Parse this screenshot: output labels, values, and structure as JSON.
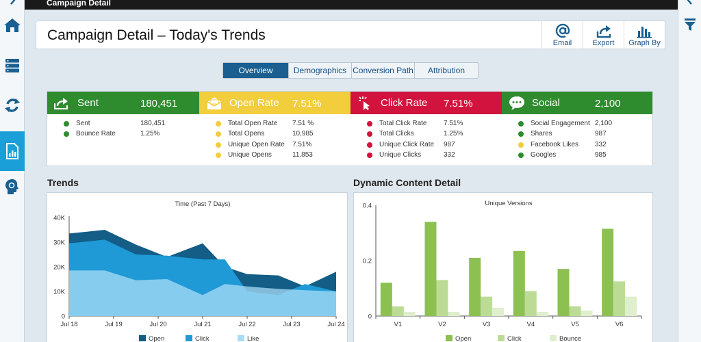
{
  "window": {
    "title": "Campaign Detail"
  },
  "header": {
    "title": "Campaign Detail – Today's Trends",
    "actions": [
      {
        "label": "Email",
        "icon": "at-icon"
      },
      {
        "label": "Export",
        "icon": "export-icon"
      },
      {
        "label": "Graph By",
        "icon": "bar-chart-icon"
      }
    ]
  },
  "tabs": [
    {
      "label": "Overview",
      "active": true
    },
    {
      "label": "Demographics"
    },
    {
      "label": "Conversion Path"
    },
    {
      "label": "Attribution"
    }
  ],
  "sidebar": {
    "items": [
      {
        "icon": "home-icon"
      },
      {
        "icon": "server-icon"
      },
      {
        "icon": "refresh-icon"
      },
      {
        "icon": "report-icon",
        "active": true
      },
      {
        "icon": "head-idea-icon"
      }
    ]
  },
  "right_rail": {
    "icons": [
      "chevron-left-icon",
      "filter-icon"
    ]
  },
  "kpis": [
    {
      "title": "Sent",
      "value": "180,451",
      "color": "#2e8b2e",
      "icon": "send-icon",
      "rows": [
        {
          "label": "Sent",
          "value": "180,451",
          "dot": "#2e8b2e"
        },
        {
          "label": "Bounce Rate",
          "value": "1.25%",
          "dot": "#2e8b2e"
        }
      ]
    },
    {
      "title": "Open Rate",
      "value": "7.51%",
      "color": "#f2cd3c",
      "icon": "envelope-open-icon",
      "rows": [
        {
          "label": "Total Open Rate",
          "value": "7.51 %",
          "dot": "#f2cd3c"
        },
        {
          "label": "Total Opens",
          "value": "10,985",
          "dot": "#f2cd3c"
        },
        {
          "label": "Unique Open Rate",
          "value": "7.51%",
          "dot": "#f2cd3c"
        },
        {
          "label": "Unique Opens",
          "value": "11,853",
          "dot": "#f2cd3c"
        }
      ]
    },
    {
      "title": "Click Rate",
      "value": "7.51%",
      "color": "#d1133d",
      "icon": "cursor-click-icon",
      "rows": [
        {
          "label": "Total Click Rate",
          "value": "7.51%",
          "dot": "#d1133d"
        },
        {
          "label": "Total Clicks",
          "value": "1.25%",
          "dot": "#d1133d"
        },
        {
          "label": "Unique Click Rate",
          "value": "987",
          "dot": "#d1133d"
        },
        {
          "label": "Unique Clicks",
          "value": "332",
          "dot": "#d1133d"
        }
      ]
    },
    {
      "title": "Social",
      "value": "2,100",
      "color": "#2e8b2e",
      "icon": "speech-bubble-icon",
      "rows": [
        {
          "label": "Social Engagement",
          "value": "2,100",
          "dot": "#2e8b2e"
        },
        {
          "label": "Shares",
          "value": "987",
          "dot": "#2e8b2e"
        },
        {
          "label": "Facebook Likes",
          "value": "332",
          "dot": "#f2cd3c"
        },
        {
          "label": "Googles",
          "value": "985",
          "dot": "#2e8b2e"
        }
      ]
    }
  ],
  "sections": {
    "trends": "Trends",
    "dynamic": "Dynamic Content Detail"
  },
  "chart_data": [
    {
      "type": "area",
      "title": "Time (Past 7 Days)",
      "x": [
        "Jul 18",
        "Jul 19",
        "Jul 20",
        "Jul 21",
        "Jul 22",
        "Jul 23",
        "Jul 24"
      ],
      "ylim": [
        0,
        40000
      ],
      "yticks": [
        0,
        10000,
        20000,
        30000,
        40000
      ],
      "ytick_labels": [
        "0",
        "10K",
        "20K",
        "30K",
        "40K"
      ],
      "series": [
        {
          "name": "Open",
          "color": "#135d87",
          "x": [
            0,
            0.8,
            1.5,
            2.2,
            3,
            3.5,
            4,
            4.7,
            5.3,
            6
          ],
          "values": [
            33500,
            35000,
            29000,
            24000,
            29500,
            20000,
            17000,
            16500,
            12000,
            18000
          ]
        },
        {
          "name": "Click",
          "color": "#1f9ad6",
          "x": [
            0,
            0.8,
            1.5,
            2.2,
            3,
            3.5,
            4,
            4.7,
            5.3,
            6
          ],
          "values": [
            29500,
            31000,
            25000,
            24500,
            23000,
            23000,
            10000,
            8500,
            13000,
            10000
          ]
        },
        {
          "name": "Like",
          "color": "#a9dcf5",
          "x": [
            0,
            0.8,
            1.5,
            2.2,
            3,
            3.5,
            4,
            4.7,
            5.3,
            6
          ],
          "values": [
            18500,
            18500,
            14500,
            15000,
            8500,
            13000,
            12000,
            11000,
            10500,
            10000
          ]
        }
      ],
      "legend": "bottom"
    },
    {
      "type": "bar",
      "title": "Unique Versions",
      "categories": [
        "V1",
        "V2",
        "V3",
        "V4",
        "V5",
        "V6"
      ],
      "ylim": [
        0,
        0.4
      ],
      "yticks": [
        0,
        0.2,
        0.4
      ],
      "ytick_labels": [
        "0",
        "0.2",
        "0.4"
      ],
      "series": [
        {
          "name": "Open",
          "color": "#8cc152",
          "values": [
            0.12,
            0.34,
            0.21,
            0.235,
            0.17,
            0.315
          ]
        },
        {
          "name": "Click",
          "color": "#bcdc96",
          "values": [
            0.035,
            0.13,
            0.07,
            0.09,
            0.035,
            0.125
          ]
        },
        {
          "name": "Bounce",
          "color": "#dfeecd",
          "values": [
            0.015,
            0.015,
            0.03,
            0.015,
            0.02,
            0.07
          ]
        }
      ],
      "legend": "bottom"
    }
  ]
}
